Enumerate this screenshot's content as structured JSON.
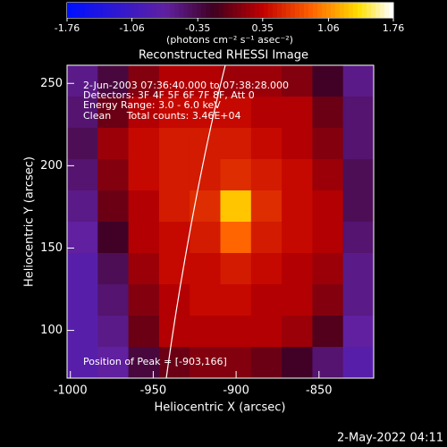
{
  "chart_data": {
    "type": "image",
    "title": "Reconstructed RHESSI Image",
    "xlabel": "Heliocentric X (arcsec)",
    "ylabel": "Heliocentric Y (arcsec)",
    "colorbar_label": "(photons cm⁻² s⁻¹ asec⁻²)",
    "annotations": [
      "2-Jun-2003 07:36:40.000 to 07:38:28.000",
      "Detectors: 3F 4F 5F 6F 7F 8F, Att 0",
      "Energy Range: 3.0 - 6.0 keV",
      "Clean     Total counts: 3.46E+04"
    ],
    "peak_label": "Position of Peak = [-903,166]",
    "footer": "2-May-2022 04:11",
    "xlim": [
      -1002,
      -817
    ],
    "ylim": [
      71,
      261
    ],
    "xticks": [
      -1000,
      -950,
      -900,
      -850
    ],
    "yticks": [
      100,
      150,
      200,
      250
    ],
    "clim": [
      -1.76,
      1.76
    ],
    "cticks": [
      -1.76,
      -1.06,
      -0.35,
      0.35,
      1.06,
      1.76
    ],
    "z": [
      [
        -0.6,
        -0.3,
        0.1,
        0.3,
        0.3,
        0.2,
        0.2,
        0.1,
        -0.2,
        -0.6
      ],
      [
        -0.5,
        0.0,
        0.3,
        0.4,
        0.4,
        0.4,
        0.3,
        0.3,
        0.0,
        -0.5
      ],
      [
        -0.4,
        0.2,
        0.4,
        0.5,
        0.5,
        0.5,
        0.4,
        0.3,
        0.1,
        -0.5
      ],
      [
        -0.5,
        0.1,
        0.4,
        0.5,
        0.5,
        0.6,
        0.5,
        0.4,
        0.2,
        -0.4
      ],
      [
        -0.6,
        0.0,
        0.3,
        0.5,
        0.6,
        1.3,
        0.6,
        0.4,
        0.3,
        -0.4
      ],
      [
        -0.7,
        -0.2,
        0.3,
        0.4,
        0.5,
        0.9,
        0.5,
        0.4,
        0.3,
        -0.5
      ],
      [
        -0.8,
        -0.4,
        0.2,
        0.4,
        0.4,
        0.5,
        0.4,
        0.3,
        0.2,
        -0.6
      ],
      [
        -0.8,
        -0.5,
        0.1,
        0.3,
        0.4,
        0.4,
        0.3,
        0.3,
        0.1,
        -0.6
      ],
      [
        -0.8,
        -0.6,
        0.0,
        0.3,
        0.3,
        0.3,
        0.3,
        0.2,
        -0.1,
        -0.7
      ],
      [
        -0.8,
        -0.7,
        -0.3,
        0.0,
        0.1,
        0.1,
        0.0,
        -0.2,
        -0.5,
        -0.8
      ]
    ]
  }
}
